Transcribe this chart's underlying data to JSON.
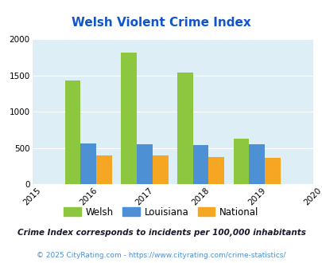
{
  "title": "Welsh Violent Crime Index",
  "years": [
    2016,
    2017,
    2018,
    2019
  ],
  "welsh": [
    1430,
    1820,
    1545,
    625
  ],
  "louisiana": [
    560,
    550,
    535,
    550
  ],
  "national": [
    395,
    395,
    378,
    362
  ],
  "bar_colors": {
    "welsh": "#8dc63f",
    "louisiana": "#4d90d4",
    "national": "#f5a623"
  },
  "xlim": [
    2015,
    2020
  ],
  "ylim": [
    0,
    2000
  ],
  "yticks": [
    0,
    500,
    1000,
    1500,
    2000
  ],
  "xticks": [
    2015,
    2016,
    2017,
    2018,
    2019,
    2020
  ],
  "bg_color": "#ddeef6",
  "title_color": "#1155cc",
  "footnote1": "Crime Index corresponds to incidents per 100,000 inhabitants",
  "footnote2": "© 2025 CityRating.com - https://www.cityrating.com/crime-statistics/",
  "footnote1_color": "#1a1a2e",
  "footnote2_color": "#4d90d4",
  "bar_width": 0.28,
  "legend_labels": [
    "Welsh",
    "Louisiana",
    "National"
  ]
}
